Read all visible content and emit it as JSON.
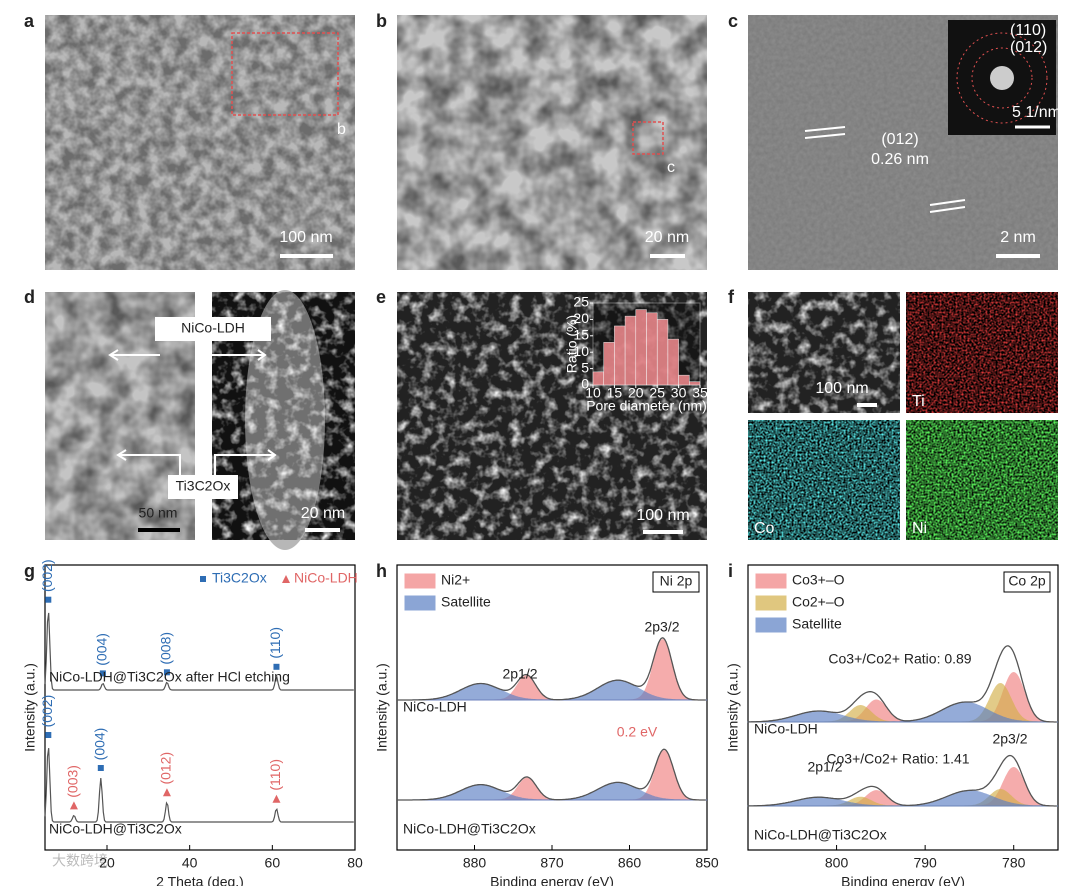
{
  "panels": {
    "a": {
      "label": "a",
      "scale_bar": "100 nm",
      "region": "b"
    },
    "b": {
      "label": "b",
      "scale_bar": "20 nm",
      "region": "c"
    },
    "c": {
      "label": "c",
      "scale_bar": "2 nm",
      "lattice_plane": "(012)",
      "d_spacing": "0.26 nm",
      "inset_rings": [
        "(110)",
        "(012)"
      ],
      "inset_scale_bar": "5 1/nm"
    },
    "d": {
      "label": "d",
      "scale_bars": [
        "50 nm",
        "20 nm"
      ],
      "annotations": [
        "NiCo-LDH",
        "Ti3C2Ox"
      ]
    },
    "e": {
      "label": "e",
      "scale_bar": "100 nm"
    },
    "f": {
      "label": "f",
      "scale_bar": "100 nm",
      "elements": [
        "Ti",
        "Co",
        "Ni"
      ]
    },
    "g": {
      "label": "g"
    },
    "h": {
      "label": "h"
    },
    "i": {
      "label": "i"
    }
  },
  "chart_data": [
    {
      "type": "histogram",
      "xlabel": "Pore diameter (nm)",
      "ylabel": "Ratio (%)",
      "bins": [
        10,
        12.5,
        15,
        17.5,
        20,
        22.5,
        25,
        27.5,
        30,
        32.5,
        35
      ],
      "values": [
        4,
        13,
        18,
        21,
        23,
        22,
        20,
        14,
        3,
        1
      ],
      "xlim": [
        10,
        35
      ],
      "xticks": [
        10,
        15,
        20,
        25,
        30,
        35
      ],
      "ylim": [
        0,
        25
      ],
      "yticks": [
        0,
        5,
        10,
        15,
        20,
        25
      ],
      "color": "#e8868a"
    },
    {
      "type": "xrd",
      "xlabel": "2 Theta (deg.)",
      "ylabel": "Intensity (a.u.)",
      "xlim": [
        5,
        80
      ],
      "xticks": [
        20,
        40,
        60,
        80
      ],
      "ylim": [
        0,
        100
      ],
      "legend": [
        {
          "name": "Ti3C2Ox",
          "color": "#2e6db4"
        },
        {
          "name": "NiCo-LDH",
          "color": "#e06666"
        }
      ],
      "series": [
        {
          "name": "NiCo-LDH@Ti3C2Ox after HCl etching",
          "color": "#555555",
          "x": [
            5.8,
            19,
            34.5,
            61
          ],
          "values": [
            73,
            6,
            7,
            12
          ],
          "peak_labels": [
            "(002)",
            "(004)",
            "(008)",
            "(110)"
          ],
          "peak_phase": [
            "Ti3C2Ox",
            "Ti3C2Ox",
            "Ti3C2Ox",
            "Ti3C2Ox"
          ]
        },
        {
          "name": "NiCo-LDH@Ti3C2Ox",
          "color": "#555555",
          "x": [
            5.8,
            12,
            18.5,
            34.5,
            61
          ],
          "values": [
            70,
            6,
            40,
            18,
            12
          ],
          "peak_labels": [
            "(002)",
            "(003)",
            "(004)",
            "(012)",
            "(110)"
          ],
          "peak_phase": [
            "Ti3C2Ox",
            "NiCo-LDH",
            "Ti3C2Ox",
            "NiCo-LDH",
            "NiCo-LDH"
          ]
        }
      ]
    },
    {
      "type": "xps",
      "title": "Ni 2p",
      "xlabel": "Binding energy (eV)",
      "ylabel": "Intensity (a.u.)",
      "xlim": [
        890,
        850
      ],
      "xticks": [
        880,
        870,
        860,
        850
      ],
      "ylim": [
        0,
        100
      ],
      "components": [
        {
          "name": "Ni2+",
          "color": "#f08080"
        },
        {
          "name": "Satellite",
          "color": "#5b7fc4"
        }
      ],
      "spectra": [
        {
          "name": "NiCo-LDH",
          "x": [
            855.7,
            873.3,
            861.5,
            879.2
          ],
          "values": [
            55,
            22,
            18,
            15
          ],
          "component": [
            "Ni2+",
            "Ni2+",
            "Satellite",
            "Satellite"
          ]
        },
        {
          "name": "NiCo-LDH@Ti3C2Ox",
          "x": [
            855.5,
            873.2,
            861.5,
            879.2
          ],
          "values": [
            45,
            20,
            16,
            14
          ],
          "component": [
            "Ni2+",
            "Ni2+",
            "Satellite",
            "Satellite"
          ]
        }
      ],
      "annotations": [
        "2p1/2",
        "2p3/2",
        "0.2 eV"
      ]
    },
    {
      "type": "xps",
      "title": "Co 2p",
      "xlabel": "Binding energy (eV)",
      "ylabel": "Intensity (a.u.)",
      "xlim": [
        810,
        775
      ],
      "xticks": [
        800,
        790,
        780
      ],
      "ylim": [
        0,
        100
      ],
      "components": [
        {
          "name": "Co3+–O",
          "color": "#f08080"
        },
        {
          "name": "Co2+–O",
          "color": "#d4b04a"
        },
        {
          "name": "Satellite",
          "color": "#5b7fc4"
        }
      ],
      "spectra": [
        {
          "name": "NiCo-LDH",
          "x": [
            780,
            781.5,
            795.5,
            797.3,
            785.5,
            802
          ],
          "values": [
            45,
            35,
            20,
            15,
            18,
            10
          ],
          "component": [
            "Co3+–O",
            "Co2+–O",
            "Co3+–O",
            "Co2+–O",
            "Satellite",
            "Satellite"
          ]
        },
        {
          "name": "NiCo-LDH@Ti3C2Ox",
          "x": [
            780,
            781.5,
            795.5,
            797.3,
            785,
            802
          ],
          "values": [
            35,
            15,
            14,
            8,
            14,
            8
          ],
          "component": [
            "Co3+–O",
            "Co2+–O",
            "Co3+–O",
            "Co2+–O",
            "Satellite",
            "Satellite"
          ]
        }
      ],
      "annotations": [
        "Co3+/Co2+ Ratio: 0.89",
        "Co3+/Co2+ Ratio: 1.41",
        "2p1/2",
        "2p3/2"
      ]
    }
  ],
  "watermark": "大数跨境"
}
